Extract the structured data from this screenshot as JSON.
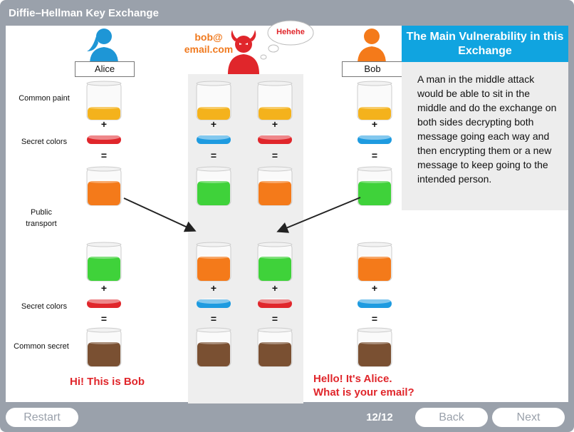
{
  "app": {
    "title": "Diffie–Hellman Key Exchange"
  },
  "row_labels": {
    "common_paint": "Common paint",
    "secret_colors_1": "Secret colors",
    "public_transport": "Public transport",
    "secret_colors_2": "Secret colors",
    "common_secret": "Common secret"
  },
  "people": {
    "alice": {
      "name": "Alice"
    },
    "bob": {
      "name": "Bob"
    },
    "attacker": {
      "email_line1": "bob@",
      "email_line2": "email.com",
      "thought": "Hehehe"
    }
  },
  "operators": {
    "plus": "+",
    "equals": "="
  },
  "speech": {
    "alice_side": "Hi! This is Bob",
    "bob_side_line1": "Hello! It's Alice.",
    "bob_side_line2": "What is your email?"
  },
  "info_panel": {
    "title": "The Main Vulnerability in this Exchange",
    "body": "A man in the middle attack would be able to sit in the middle and do the exchange on both sides decrypting both message going each way and then encrypting them or a new message to keep going to the intended person."
  },
  "footer": {
    "restart_label": "Restart",
    "page_counter": "12/12",
    "back_label": "Back",
    "next_label": "Next"
  },
  "colors": {
    "yellow": "#f4b21c",
    "red": "#e0262b",
    "blue": "#1e9be0",
    "orange": "#f47a1a",
    "green": "#3fd23a",
    "brown": "#7a5032",
    "accent": "#10a4e0"
  }
}
